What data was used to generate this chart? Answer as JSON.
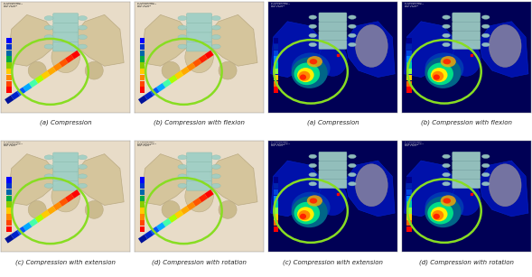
{
  "figure_width": 5.89,
  "figure_height": 3.07,
  "dpi": 100,
  "background_color": "#ffffff",
  "grid_rows": 2,
  "grid_cols": 4,
  "captions": [
    "(a) Compression",
    "(b) Compression with flexion",
    "(a) Compression",
    "(b) Compression with flexion",
    "(c) Compression with extension",
    "(d) Compression with rotation",
    "(c) Compression with extension",
    "(d) Compression with rotation"
  ],
  "caption_fontsize": 5.0,
  "caption_color": "#222222",
  "left_cols_bg": "#e8dcc8",
  "right_cols_bg": "#000033",
  "bone_color": "#d4c49a",
  "bone_edge": "#b8a880",
  "spine_color": "#8bbcb0",
  "spine_seg_color": "#9fcfc5",
  "circle_color": "#88dd22",
  "circle_lw": 1.8,
  "colorbar_colors_left": [
    "#ff0000",
    "#ff4400",
    "#ff8800",
    "#ffcc00",
    "#88cc00",
    "#00aa44",
    "#0066aa",
    "#0033cc",
    "#0000ff"
  ],
  "colorbar_colors_right": [
    "#ff0000",
    "#ff6600",
    "#ffcc00",
    "#88ff44",
    "#00ccaa",
    "#0088ff",
    "#0044dd",
    "#0022aa",
    "#000088"
  ],
  "screw_rainbow": [
    "#ff0000",
    "#ff2200",
    "#ff5500",
    "#ff8800",
    "#ffaa00",
    "#ffcc00",
    "#aaff00",
    "#44ffaa",
    "#00aaff",
    "#0055ff",
    "#0022cc",
    "#001199"
  ],
  "hip_blue_dark": "#000055",
  "hip_blue_mid": "#0011aa",
  "hip_cyan": "#00aacc",
  "stress_red": "#ff2200",
  "stress_orange": "#ff8800",
  "stress_yellow": "#ffee00",
  "stress_green": "#00dd88"
}
